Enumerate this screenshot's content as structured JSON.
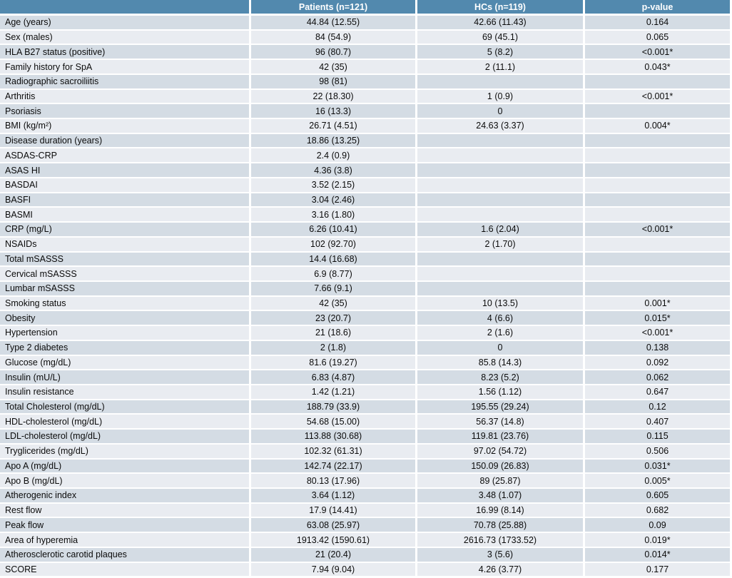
{
  "table": {
    "columns": [
      "",
      "Patients (n=121)",
      "HCs (n=119)",
      "p-value"
    ],
    "rows": [
      {
        "label": "Age (years)",
        "patients": "44.84 (12.55)",
        "hcs": "42.66 (11.43)",
        "p": "0.164"
      },
      {
        "label": "Sex (males)",
        "patients": "84 (54.9)",
        "hcs": "69 (45.1)",
        "p": "0.065"
      },
      {
        "label": "HLA B27 status (positive)",
        "patients": "96 (80.7)",
        "hcs": "5 (8.2)",
        "p": "<0.001*"
      },
      {
        "label": "Family history for SpA",
        "patients": "42 (35)",
        "hcs": "2 (11.1)",
        "p": "0.043*"
      },
      {
        "label": "Radiographic sacroiliitis",
        "patients": "98 (81)",
        "hcs": "",
        "p": ""
      },
      {
        "label": "Arthritis",
        "patients": "22 (18.30)",
        "hcs": "1 (0.9)",
        "p": "<0.001*"
      },
      {
        "label": "Psoriasis",
        "patients": "16 (13.3)",
        "hcs": "0",
        "p": ""
      },
      {
        "label": "BMI (kg/m²)",
        "patients": "26.71 (4.51)",
        "hcs": "24.63 (3.37)",
        "p": "0.004*"
      },
      {
        "label": "Disease duration (years)",
        "patients": "18.86 (13.25)",
        "hcs": "",
        "p": ""
      },
      {
        "label": "ASDAS-CRP",
        "patients": "2.4 (0.9)",
        "hcs": "",
        "p": ""
      },
      {
        "label": "ASAS HI",
        "patients": "4.36 (3.8)",
        "hcs": "",
        "p": ""
      },
      {
        "label": "BASDAI",
        "patients": "3.52 (2.15)",
        "hcs": "",
        "p": ""
      },
      {
        "label": "BASFI",
        "patients": "3.04 (2.46)",
        "hcs": "",
        "p": ""
      },
      {
        "label": "BASMI",
        "patients": "3.16 (1.80)",
        "hcs": "",
        "p": ""
      },
      {
        "label": "CRP (mg/L)",
        "patients": "6.26 (10.41)",
        "hcs": "1.6 (2.04)",
        "p": "<0.001*"
      },
      {
        "label": "NSAIDs",
        "patients": "102 (92.70)",
        "hcs": "2 (1.70)",
        "p": ""
      },
      {
        "label": "Total mSASSS",
        "patients": "14.4 (16.68)",
        "hcs": "",
        "p": ""
      },
      {
        "label": "Cervical mSASSS",
        "patients": "6.9 (8.77)",
        "hcs": "",
        "p": ""
      },
      {
        "label": "Lumbar mSASSS",
        "patients": "7.66 (9.1)",
        "hcs": "",
        "p": ""
      },
      {
        "label": "Smoking status",
        "patients": "42 (35)",
        "hcs": "10 (13.5)",
        "p": "0.001*"
      },
      {
        "label": "Obesity",
        "patients": "23 (20.7)",
        "hcs": "4 (6.6)",
        "p": "0.015*"
      },
      {
        "label": "Hypertension",
        "patients": "21 (18.6)",
        "hcs": "2 (1.6)",
        "p": "<0.001*"
      },
      {
        "label": "Type 2 diabetes",
        "patients": "2 (1.8)",
        "hcs": "0",
        "p": "0.138"
      },
      {
        "label": "Glucose (mg/dL)",
        "patients": "81.6 (19.27)",
        "hcs": "85.8 (14.3)",
        "p": "0.092"
      },
      {
        "label": "Insulin (mU/L)",
        "patients": "6.83 (4.87)",
        "hcs": "8.23 (5.2)",
        "p": "0.062"
      },
      {
        "label": "Insulin resistance",
        "patients": "1.42 (1.21)",
        "hcs": "1.56 (1.12)",
        "p": "0.647"
      },
      {
        "label": "Total Cholesterol (mg/dL)",
        "patients": "188.79 (33.9)",
        "hcs": "195.55 (29.24)",
        "p": "0.12"
      },
      {
        "label": "HDL-cholesterol (mg/dL)",
        "patients": "54.68 (15.00)",
        "hcs": "56.37 (14.8)",
        "p": "0.407"
      },
      {
        "label": "LDL-cholesterol (mg/dL)",
        "patients": "113.88 (30.68)",
        "hcs": "119.81 (23.76)",
        "p": "0.115"
      },
      {
        "label": "Tryglicerides (mg/dL)",
        "patients": "102.32 (61.31)",
        "hcs": "97.02 (54.72)",
        "p": "0.506"
      },
      {
        "label": "Apo A (mg/dL)",
        "patients": "142.74 (22.17)",
        "hcs": "150.09 (26.83)",
        "p": "0.031*"
      },
      {
        "label": "Apo B (mg/dL)",
        "patients": "80.13 (17.96)",
        "hcs": "89 (25.87)",
        "p": "0.005*"
      },
      {
        "label": "Atherogenic index",
        "patients": "3.64 (1.12)",
        "hcs": "3.48 (1.07)",
        "p": "0.605"
      },
      {
        "label": "Rest flow",
        "patients": "17.9 (14.41)",
        "hcs": "16.99 (8.14)",
        "p": "0.682"
      },
      {
        "label": "Peak flow",
        "patients": "63.08 (25.97)",
        "hcs": "70.78 (25.88)",
        "p": "0.09"
      },
      {
        "label": "Area of hyperemia",
        "patients": "1913.42 (1590.61)",
        "hcs": "2616.73 (1733.52)",
        "p": "0.019*"
      },
      {
        "label": "Atherosclerotic carotid plaques",
        "patients": "21 (20.4)",
        "hcs": "3 (5.6)",
        "p": "0.014*"
      },
      {
        "label": "SCORE",
        "patients": "7.94 (9.04)",
        "hcs": "4.26 (3.77)",
        "p": "0.177"
      }
    ]
  },
  "colors": {
    "header_bg": "#5289AE",
    "header_text": "#FFFFFF",
    "row_odd_bg": "#D4DCE4",
    "row_even_bg": "#E9ECF1",
    "grid_line": "#FFFFFF",
    "body_text": "#0B0B0B"
  }
}
